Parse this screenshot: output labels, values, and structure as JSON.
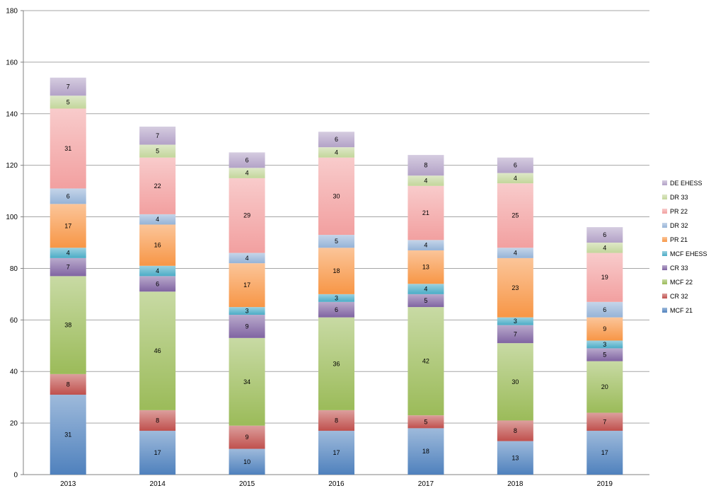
{
  "chart_data": {
    "type": "bar",
    "stacked": true,
    "categories": [
      "2013",
      "2014",
      "2015",
      "2016",
      "2017",
      "2018",
      "2019"
    ],
    "ylim": [
      0,
      180
    ],
    "yticks": [
      0,
      20,
      40,
      60,
      80,
      100,
      120,
      140,
      160,
      180
    ],
    "grid": true,
    "legend_position": "right",
    "series": [
      {
        "name": "MCF 21",
        "color": "#4f81bd",
        "values": [
          31,
          17,
          10,
          17,
          18,
          13,
          17
        ]
      },
      {
        "name": "CR 32",
        "color": "#c0504d",
        "values": [
          8,
          8,
          9,
          8,
          5,
          8,
          7
        ]
      },
      {
        "name": "MCF 22",
        "color": "#9bbb59",
        "values": [
          38,
          46,
          34,
          36,
          42,
          30,
          20
        ]
      },
      {
        "name": "CR 33",
        "color": "#8064a2",
        "values": [
          7,
          6,
          9,
          6,
          5,
          7,
          5
        ]
      },
      {
        "name": "MCF EHESS",
        "color": "#4bacc6",
        "values": [
          4,
          4,
          3,
          3,
          4,
          3,
          3
        ]
      },
      {
        "name": "PR 21",
        "color": "#f79646",
        "values": [
          17,
          16,
          17,
          18,
          13,
          23,
          9
        ]
      },
      {
        "name": "DR 32",
        "color": "#95b3d7",
        "values": [
          6,
          4,
          4,
          5,
          4,
          4,
          6
        ]
      },
      {
        "name": "PR 22",
        "color": "#f2a0a0",
        "values": [
          31,
          22,
          29,
          30,
          21,
          25,
          19
        ]
      },
      {
        "name": "DR 33",
        "color": "#c3d69b",
        "values": [
          5,
          5,
          4,
          4,
          4,
          4,
          4
        ]
      },
      {
        "name": "DE EHESS",
        "color": "#b3a2c7",
        "values": [
          7,
          7,
          6,
          6,
          8,
          6,
          6
        ]
      }
    ]
  }
}
